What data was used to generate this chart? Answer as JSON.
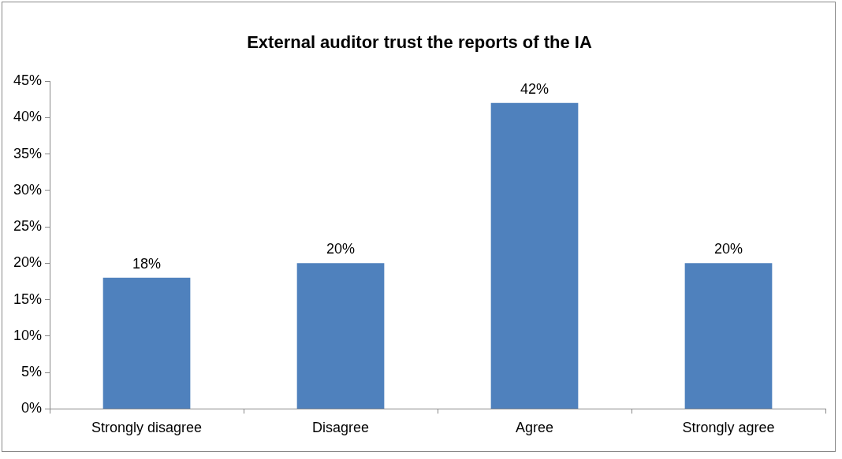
{
  "chart_data": {
    "type": "bar",
    "title": "External auditor trust the reports of the IA",
    "categories": [
      "Strongly disagree",
      "Disagree",
      "Agree",
      "Strongly agree"
    ],
    "values": [
      18,
      20,
      42,
      20
    ],
    "color": "#4f81bd",
    "value_labels": [
      "18%",
      "20%",
      "42%",
      "20%"
    ],
    "ylim": [
      0,
      45
    ],
    "yticks": [
      {
        "value": 0,
        "label": "0%"
      },
      {
        "value": 5,
        "label": "5%"
      },
      {
        "value": 10,
        "label": "10%"
      },
      {
        "value": 15,
        "label": "15%"
      },
      {
        "value": 20,
        "label": "20%"
      },
      {
        "value": 25,
        "label": "25%"
      },
      {
        "value": 30,
        "label": "30%"
      },
      {
        "value": 35,
        "label": "35%"
      },
      {
        "value": 40,
        "label": "40%"
      },
      {
        "value": 45,
        "label": "45%"
      }
    ],
    "grid": false,
    "legend": false
  }
}
